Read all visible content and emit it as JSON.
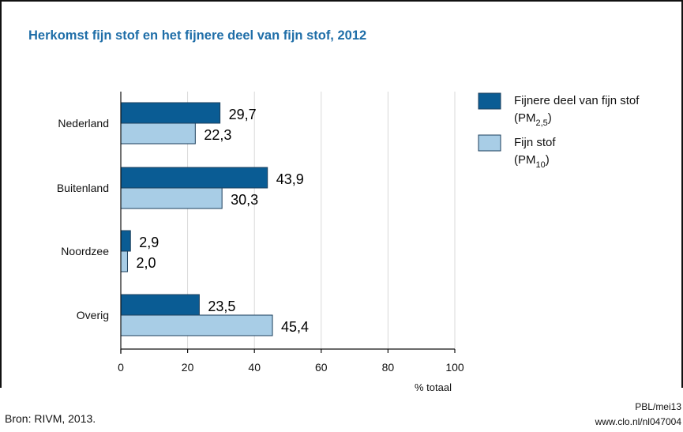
{
  "chart_data": {
    "type": "bar",
    "orientation": "horizontal",
    "title": "Herkomst fijn stof en het fijnere deel van fijn stof, 2012",
    "categories": [
      "Nederland",
      "Buitenland",
      "Noordzee",
      "Overig"
    ],
    "series": [
      {
        "name": "Fijnere deel van fijn stof",
        "name_line2": "(PM",
        "subscript": "2,5",
        "name_close": ")",
        "color": "#0a5c94",
        "values": [
          29.7,
          43.9,
          2.9,
          23.5
        ],
        "value_labels": [
          "29,7",
          "43,9",
          "2,9",
          "23,5"
        ]
      },
      {
        "name": "Fijn stof",
        "name_line2": "(PM",
        "subscript": "10",
        "name_close": ")",
        "color": "#a8cde6",
        "values": [
          22.3,
          30.3,
          2.0,
          45.4
        ],
        "value_labels": [
          "22,3",
          "30,3",
          "2,0",
          "45,4"
        ]
      }
    ],
    "xlabel": "% totaal",
    "xlim": [
      0,
      100
    ],
    "xticks": [
      "0",
      "20",
      "40",
      "60",
      "80",
      "100"
    ],
    "grid": true,
    "legend_position": "top-right"
  },
  "footer": {
    "source": "Bron: RIVM, 2013.",
    "credit_line1": "PBL/mei13",
    "credit_line2": "www.clo.nl/nl047004"
  }
}
